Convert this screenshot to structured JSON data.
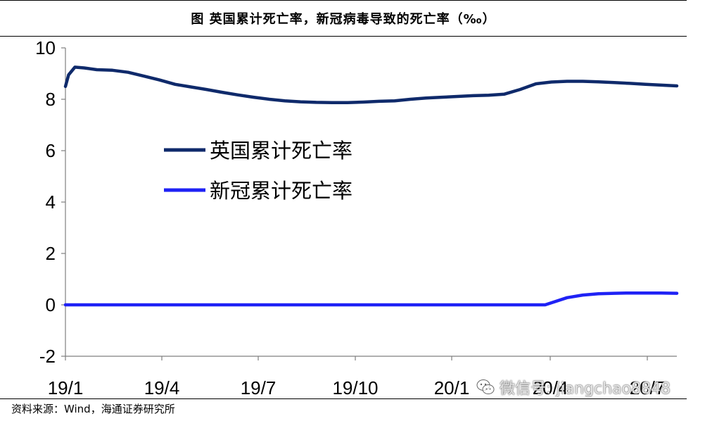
{
  "title": "图  英国累计死亡率，新冠病毒导致的死亡率（‰）",
  "source": "资料来源：Wind，海通证券研究所",
  "watermark": {
    "text": "微信号: jiangchao8848",
    "icon": "wechat-icon"
  },
  "colors": {
    "uk_series": "#0F2A6B",
    "covid_series": "#1F22F5",
    "axis": "#7F7F7F"
  },
  "chart_data": {
    "type": "line",
    "xlabel": "",
    "ylabel": "",
    "ylim": [
      -2,
      10
    ],
    "yticks": [
      10,
      8,
      6,
      4,
      2,
      0,
      -2
    ],
    "xticks": [
      "19/1",
      "19/4",
      "19/7",
      "19/10",
      "20/1",
      "20/4",
      "20/7"
    ],
    "x_range": [
      0,
      19.5
    ],
    "legend": "center-left",
    "series": [
      {
        "name": "英国累计死亡率",
        "color": "#0F2A6B",
        "x": [
          0,
          0.1,
          0.3,
          0.6,
          1.0,
          1.5,
          2.0,
          2.5,
          3.0,
          3.5,
          4.0,
          4.5,
          5.0,
          5.5,
          6.0,
          6.5,
          7.0,
          7.5,
          8.0,
          8.5,
          9.0,
          9.5,
          10.0,
          10.5,
          11.0,
          11.5,
          12.0,
          12.5,
          13.0,
          13.5,
          14.0,
          14.5,
          15.0,
          15.5,
          16.0,
          16.5,
          17.0,
          17.5,
          18.0,
          18.5,
          19.0,
          19.5
        ],
        "values": [
          8.5,
          8.95,
          9.25,
          9.22,
          9.15,
          9.13,
          9.05,
          8.9,
          8.75,
          8.58,
          8.48,
          8.38,
          8.27,
          8.17,
          8.08,
          8.0,
          7.94,
          7.9,
          7.88,
          7.87,
          7.87,
          7.89,
          7.92,
          7.94,
          8.0,
          8.05,
          8.08,
          8.11,
          8.14,
          8.16,
          8.2,
          8.38,
          8.6,
          8.67,
          8.7,
          8.7,
          8.68,
          8.65,
          8.62,
          8.58,
          8.55,
          8.52
        ]
      },
      {
        "name": "新冠累计死亡率",
        "color": "#1F22F5",
        "x": [
          0,
          15.3,
          15.6,
          16.0,
          16.5,
          17.0,
          17.5,
          18.0,
          18.5,
          19.0,
          19.5
        ],
        "values": [
          0,
          0,
          0.12,
          0.28,
          0.38,
          0.43,
          0.45,
          0.46,
          0.46,
          0.46,
          0.45
        ]
      }
    ]
  }
}
